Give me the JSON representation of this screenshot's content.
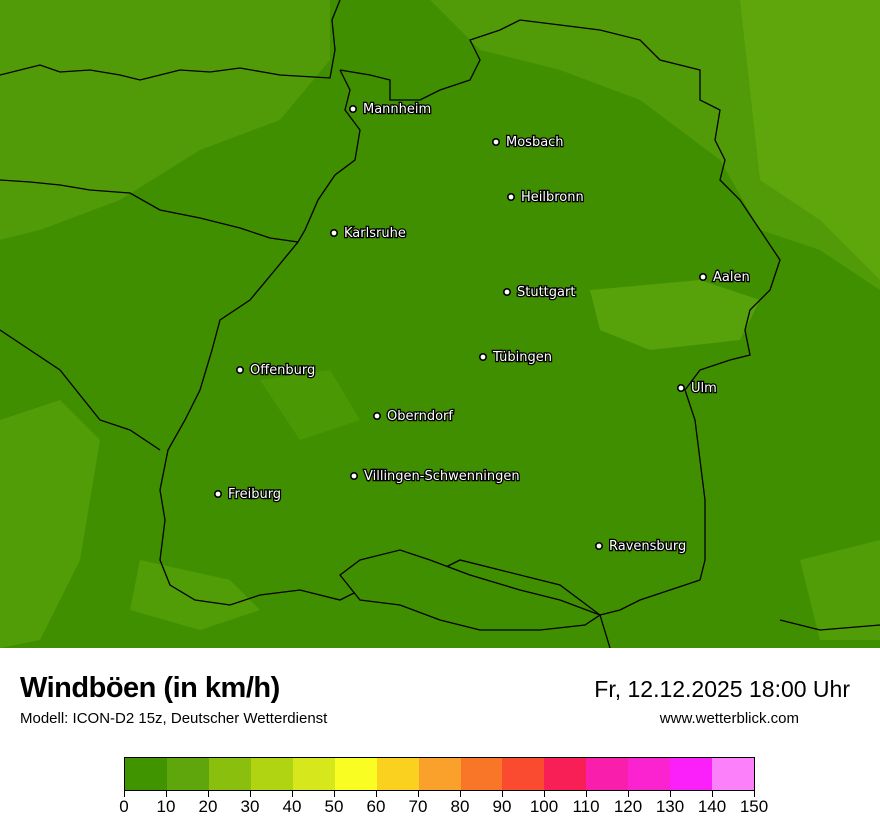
{
  "header": {
    "title": "Windböen (in km/h)",
    "model": "Modell: ICON-D2 15z, Deutscher Wetterdienst",
    "datetime": "Fr, 12.12.2025 18:00 Uhr",
    "website": "www.wetterblick.com"
  },
  "map": {
    "base_color": "#3f8f00",
    "light_color": "#5ea60c",
    "cities": [
      {
        "name": "Mannheim"
      },
      {
        "name": "Mosbach"
      },
      {
        "name": "Heilbronn"
      },
      {
        "name": "Karlsruhe"
      },
      {
        "name": "Aalen"
      },
      {
        "name": "Stuttgart"
      },
      {
        "name": "Tübingen"
      },
      {
        "name": "Offenburg"
      },
      {
        "name": "Ulm"
      },
      {
        "name": "Oberndorf"
      },
      {
        "name": "Villingen-Schwenningen"
      },
      {
        "name": "Freiburg"
      },
      {
        "name": "Ravensburg"
      }
    ]
  },
  "legend": {
    "ticks": [
      "0",
      "10",
      "20",
      "30",
      "40",
      "50",
      "60",
      "70",
      "80",
      "90",
      "100",
      "110",
      "120",
      "130",
      "140",
      "150"
    ],
    "colors": [
      "#3f9400",
      "#5ea60c",
      "#8bbf0d",
      "#b1d412",
      "#d6e81b",
      "#fafd22",
      "#fbd120",
      "#f9a12b",
      "#f97629",
      "#fa4a30",
      "#f81f57",
      "#f91fac",
      "#fb22cf",
      "#fb1ffa",
      "#fd80fb"
    ]
  }
}
